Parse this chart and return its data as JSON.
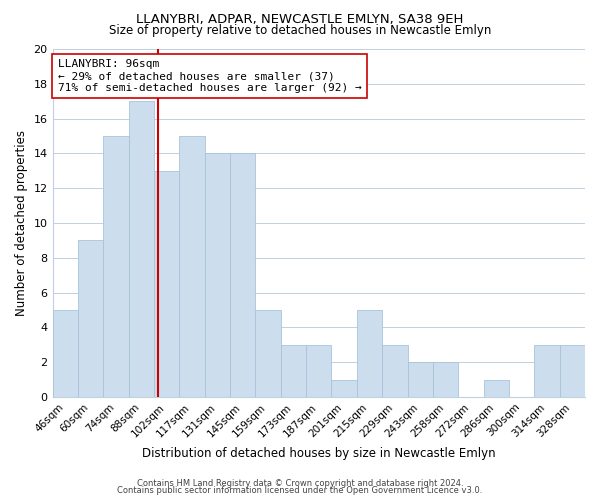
{
  "title": "LLANYBRI, ADPAR, NEWCASTLE EMLYN, SA38 9EH",
  "subtitle": "Size of property relative to detached houses in Newcastle Emlyn",
  "xlabel": "Distribution of detached houses by size in Newcastle Emlyn",
  "ylabel": "Number of detached properties",
  "bar_labels": [
    "46sqm",
    "60sqm",
    "74sqm",
    "88sqm",
    "102sqm",
    "117sqm",
    "131sqm",
    "145sqm",
    "159sqm",
    "173sqm",
    "187sqm",
    "201sqm",
    "215sqm",
    "229sqm",
    "243sqm",
    "258sqm",
    "272sqm",
    "286sqm",
    "300sqm",
    "314sqm",
    "328sqm"
  ],
  "bar_values": [
    5,
    9,
    15,
    17,
    13,
    15,
    14,
    14,
    5,
    3,
    3,
    1,
    5,
    3,
    2,
    2,
    0,
    1,
    0,
    3,
    3
  ],
  "bar_color": "#ccdded",
  "bar_edge_color": "#a8c4db",
  "vline_color": "#cc0000",
  "annotation_title": "LLANYBRI: 96sqm",
  "annotation_line1": "← 29% of detached houses are smaller (37)",
  "annotation_line2": "71% of semi-detached houses are larger (92) →",
  "annotation_box_color": "#ffffff",
  "annotation_box_edge": "#cc0000",
  "ylim": [
    0,
    20
  ],
  "yticks": [
    0,
    2,
    4,
    6,
    8,
    10,
    12,
    14,
    16,
    18,
    20
  ],
  "footer1": "Contains HM Land Registry data © Crown copyright and database right 2024.",
  "footer2": "Contains public sector information licensed under the Open Government Licence v3.0.",
  "background_color": "#ffffff",
  "grid_color": "#c0d0e0"
}
